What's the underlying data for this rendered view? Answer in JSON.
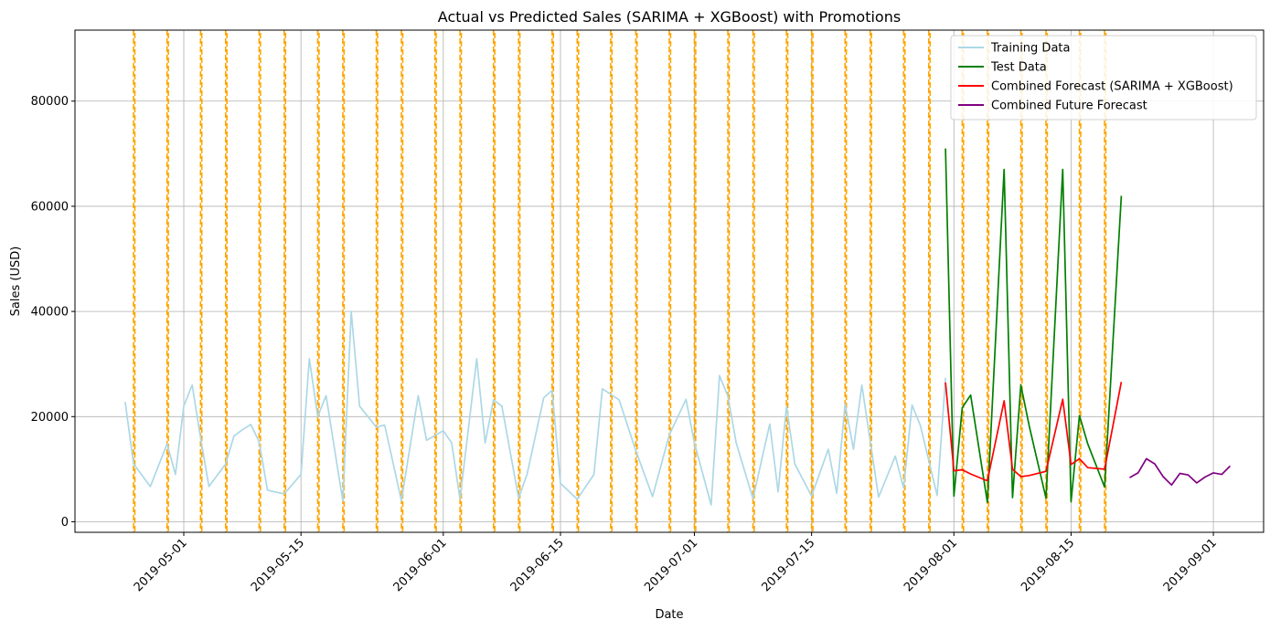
{
  "chart_data": {
    "type": "line",
    "title": "Actual vs Predicted Sales (SARIMA + XGBoost) with Promotions",
    "xlabel": "Date",
    "ylabel": "Sales (USD)",
    "x_tick_labels": [
      "2019-05-01",
      "2019-05-15",
      "2019-06-01",
      "2019-06-15",
      "2019-07-01",
      "2019-07-15",
      "2019-08-01",
      "2019-08-15",
      "2019-09-01"
    ],
    "y_tick_labels": [
      "0",
      "20000",
      "40000",
      "60000",
      "80000"
    ],
    "y_ticks": [
      0,
      20000,
      40000,
      60000,
      80000
    ],
    "xlim": [
      "2019-04-18",
      "2019-09-07"
    ],
    "ylim": [
      -2000,
      93500
    ],
    "grid": true,
    "legend_position": "top-right",
    "series": [
      {
        "name": "Training Data",
        "color": "#add8e6",
        "points": [
          [
            "2019-04-24",
            22800
          ],
          [
            "2019-04-25",
            11000
          ],
          [
            "2019-04-27",
            6700
          ],
          [
            "2019-04-29",
            14800
          ],
          [
            "2019-04-30",
            9000
          ],
          [
            "2019-05-01",
            22000
          ],
          [
            "2019-05-02",
            26000
          ],
          [
            "2019-05-03",
            16000
          ],
          [
            "2019-05-04",
            6700
          ],
          [
            "2019-05-06",
            11000
          ],
          [
            "2019-05-07",
            16300
          ],
          [
            "2019-05-08",
            17500
          ],
          [
            "2019-05-09",
            18500
          ],
          [
            "2019-05-10",
            15200
          ],
          [
            "2019-05-11",
            6000
          ],
          [
            "2019-05-13",
            5300
          ],
          [
            "2019-05-15",
            9000
          ],
          [
            "2019-05-16",
            31000
          ],
          [
            "2019-05-17",
            20000
          ],
          [
            "2019-05-18",
            24000
          ],
          [
            "2019-05-20",
            3900
          ],
          [
            "2019-05-21",
            40000
          ],
          [
            "2019-05-22",
            22000
          ],
          [
            "2019-05-24",
            18000
          ],
          [
            "2019-05-25",
            18400
          ],
          [
            "2019-05-27",
            4000
          ],
          [
            "2019-05-29",
            24000
          ],
          [
            "2019-05-30",
            15500
          ],
          [
            "2019-06-01",
            17300
          ],
          [
            "2019-06-02",
            15000
          ],
          [
            "2019-06-03",
            4300
          ],
          [
            "2019-06-05",
            31000
          ],
          [
            "2019-06-06",
            15000
          ],
          [
            "2019-06-07",
            23200
          ],
          [
            "2019-06-08",
            22000
          ],
          [
            "2019-06-10",
            4500
          ],
          [
            "2019-06-11",
            9000
          ],
          [
            "2019-06-13",
            23600
          ],
          [
            "2019-06-14",
            25000
          ],
          [
            "2019-06-15",
            7300
          ],
          [
            "2019-06-17",
            4300
          ],
          [
            "2019-06-19",
            9000
          ],
          [
            "2019-06-20",
            25300
          ],
          [
            "2019-06-22",
            23200
          ],
          [
            "2019-06-24",
            13500
          ],
          [
            "2019-06-26",
            4800
          ],
          [
            "2019-06-28",
            16500
          ],
          [
            "2019-06-30",
            23300
          ],
          [
            "2019-07-01",
            15000
          ],
          [
            "2019-07-03",
            3200
          ],
          [
            "2019-07-04",
            27800
          ],
          [
            "2019-07-05",
            23900
          ],
          [
            "2019-07-06",
            15000
          ],
          [
            "2019-07-08",
            4400
          ],
          [
            "2019-07-10",
            18600
          ],
          [
            "2019-07-11",
            5700
          ],
          [
            "2019-07-12",
            22000
          ],
          [
            "2019-07-13",
            11000
          ],
          [
            "2019-07-15",
            4900
          ],
          [
            "2019-07-17",
            13800
          ],
          [
            "2019-07-18",
            5400
          ],
          [
            "2019-07-19",
            22400
          ],
          [
            "2019-07-20",
            13800
          ],
          [
            "2019-07-21",
            26000
          ],
          [
            "2019-07-23",
            4700
          ],
          [
            "2019-07-25",
            12500
          ],
          [
            "2019-07-26",
            6400
          ],
          [
            "2019-07-27",
            22200
          ],
          [
            "2019-07-28",
            18300
          ],
          [
            "2019-07-30",
            5000
          ],
          [
            "2019-07-31",
            27400
          ]
        ]
      },
      {
        "name": "Test Data",
        "color": "#008000",
        "points": [
          [
            "2019-07-31",
            71000
          ],
          [
            "2019-08-01",
            4900
          ],
          [
            "2019-08-02",
            21700
          ],
          [
            "2019-08-03",
            24100
          ],
          [
            "2019-08-05",
            3700
          ],
          [
            "2019-08-07",
            67000
          ],
          [
            "2019-08-08",
            4600
          ],
          [
            "2019-08-09",
            26000
          ],
          [
            "2019-08-10",
            18200
          ],
          [
            "2019-08-12",
            4500
          ],
          [
            "2019-08-14",
            67000
          ],
          [
            "2019-08-15",
            3800
          ],
          [
            "2019-08-16",
            20200
          ],
          [
            "2019-08-17",
            14800
          ],
          [
            "2019-08-19",
            6600
          ],
          [
            "2019-08-21",
            62000
          ]
        ]
      },
      {
        "name": "Combined Forecast (SARIMA + XGBoost)",
        "color": "#ff0000",
        "points": [
          [
            "2019-07-31",
            26500
          ],
          [
            "2019-08-01",
            9700
          ],
          [
            "2019-08-02",
            9900
          ],
          [
            "2019-08-03",
            9100
          ],
          [
            "2019-08-05",
            7800
          ],
          [
            "2019-08-07",
            23000
          ],
          [
            "2019-08-08",
            10000
          ],
          [
            "2019-08-09",
            8600
          ],
          [
            "2019-08-10",
            8800
          ],
          [
            "2019-08-12",
            9600
          ],
          [
            "2019-08-14",
            23300
          ],
          [
            "2019-08-15",
            10900
          ],
          [
            "2019-08-16",
            12000
          ],
          [
            "2019-08-17",
            10300
          ],
          [
            "2019-08-19",
            10000
          ],
          [
            "2019-08-21",
            26600
          ]
        ]
      },
      {
        "name": "Combined Future Forecast",
        "color": "#800080",
        "points": [
          [
            "2019-08-22",
            8400
          ],
          [
            "2019-08-23",
            9300
          ],
          [
            "2019-08-24",
            12000
          ],
          [
            "2019-08-25",
            11000
          ],
          [
            "2019-08-26",
            8600
          ],
          [
            "2019-08-27",
            7000
          ],
          [
            "2019-08-28",
            9200
          ],
          [
            "2019-08-29",
            8900
          ],
          [
            "2019-08-30",
            7400
          ],
          [
            "2019-08-31",
            8500
          ],
          [
            "2019-09-01",
            9300
          ],
          [
            "2019-09-02",
            9000
          ],
          [
            "2019-09-03",
            10600
          ]
        ]
      }
    ],
    "promotions": {
      "color": "#ffa500",
      "dates": [
        "2019-04-25",
        "2019-04-29",
        "2019-05-03",
        "2019-05-06",
        "2019-05-10",
        "2019-05-13",
        "2019-05-17",
        "2019-05-20",
        "2019-05-24",
        "2019-05-27",
        "2019-05-31",
        "2019-06-03",
        "2019-06-07",
        "2019-06-10",
        "2019-06-14",
        "2019-06-17",
        "2019-06-21",
        "2019-06-24",
        "2019-06-28",
        "2019-07-01",
        "2019-07-05",
        "2019-07-08",
        "2019-07-12",
        "2019-07-15",
        "2019-07-19",
        "2019-07-22",
        "2019-07-26",
        "2019-07-29",
        "2019-08-02",
        "2019-08-05",
        "2019-08-09",
        "2019-08-12",
        "2019-08-16",
        "2019-08-19"
      ]
    }
  }
}
